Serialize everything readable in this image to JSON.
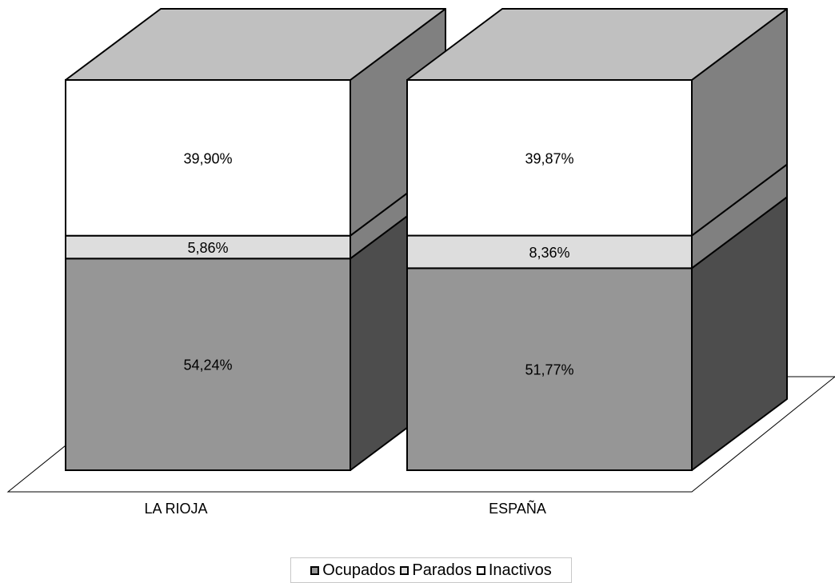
{
  "chart_data": {
    "type": "bar",
    "stacked": true,
    "three_d": true,
    "categories": [
      "LA RIOJA",
      "ESPAÑA"
    ],
    "series": [
      {
        "name": "Ocupados",
        "values": [
          54.24,
          51.77
        ],
        "labels": [
          "54,24%",
          "51,77%"
        ],
        "color": "#969696",
        "side": "#4d4d4d"
      },
      {
        "name": "Parados",
        "values": [
          5.86,
          8.36
        ],
        "labels": [
          "5,86%",
          "8,36%"
        ],
        "color": "#dddddd",
        "side": "#808080"
      },
      {
        "name": "Inactivos",
        "values": [
          39.9,
          39.87
        ],
        "labels": [
          "39,90%",
          "39,87%"
        ],
        "color": "#ffffff",
        "side": "#808080"
      }
    ],
    "top_color": "#c0c0c0",
    "ylim": [
      0,
      100
    ],
    "legend_position": "bottom"
  }
}
